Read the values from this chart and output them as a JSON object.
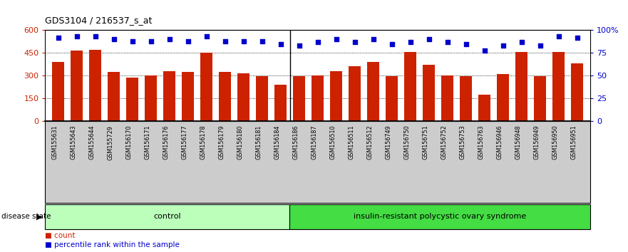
{
  "title": "GDS3104 / 216537_s_at",
  "samples": [
    "GSM155631",
    "GSM155643",
    "GSM155644",
    "GSM155729",
    "GSM156170",
    "GSM156171",
    "GSM156176",
    "GSM156177",
    "GSM156178",
    "GSM156179",
    "GSM156180",
    "GSM156181",
    "GSM156184",
    "GSM156186",
    "GSM156187",
    "GSM156510",
    "GSM156511",
    "GSM156512",
    "GSM156749",
    "GSM156750",
    "GSM156751",
    "GSM156752",
    "GSM156753",
    "GSM156763",
    "GSM156946",
    "GSM156948",
    "GSM156949",
    "GSM156950",
    "GSM156951"
  ],
  "counts": [
    390,
    465,
    470,
    325,
    285,
    300,
    330,
    325,
    450,
    325,
    315,
    295,
    240,
    295,
    300,
    330,
    360,
    390,
    295,
    455,
    370,
    300,
    295,
    175,
    310,
    455,
    295,
    455,
    380
  ],
  "percentiles": [
    92,
    93,
    93,
    90,
    88,
    88,
    90,
    88,
    93,
    88,
    88,
    88,
    85,
    83,
    87,
    90,
    87,
    90,
    85,
    87,
    90,
    87,
    85,
    78,
    83,
    87,
    83,
    93,
    92
  ],
  "control_count": 13,
  "bar_color": "#CC2200",
  "dot_color": "#0000CC",
  "ylim_left": [
    0,
    600
  ],
  "ylim_right": [
    0,
    100
  ],
  "yticks_left": [
    0,
    150,
    300,
    450,
    600
  ],
  "yticks_right": [
    0,
    25,
    50,
    75,
    100
  ],
  "ytick_labels_left": [
    "0",
    "150",
    "300",
    "450",
    "600"
  ],
  "ytick_labels_right": [
    "0",
    "25",
    "50",
    "75",
    "100%"
  ],
  "group_labels": [
    "control",
    "insulin-resistant polycystic ovary syndrome"
  ],
  "control_color": "#BBFFBB",
  "disease_color": "#44DD44",
  "legend_items": [
    "count",
    "percentile rank within the sample"
  ],
  "legend_colors": [
    "#CC2200",
    "#0000CC"
  ],
  "disease_state_label": "disease state",
  "tick_bg_color": "#CCCCCC"
}
